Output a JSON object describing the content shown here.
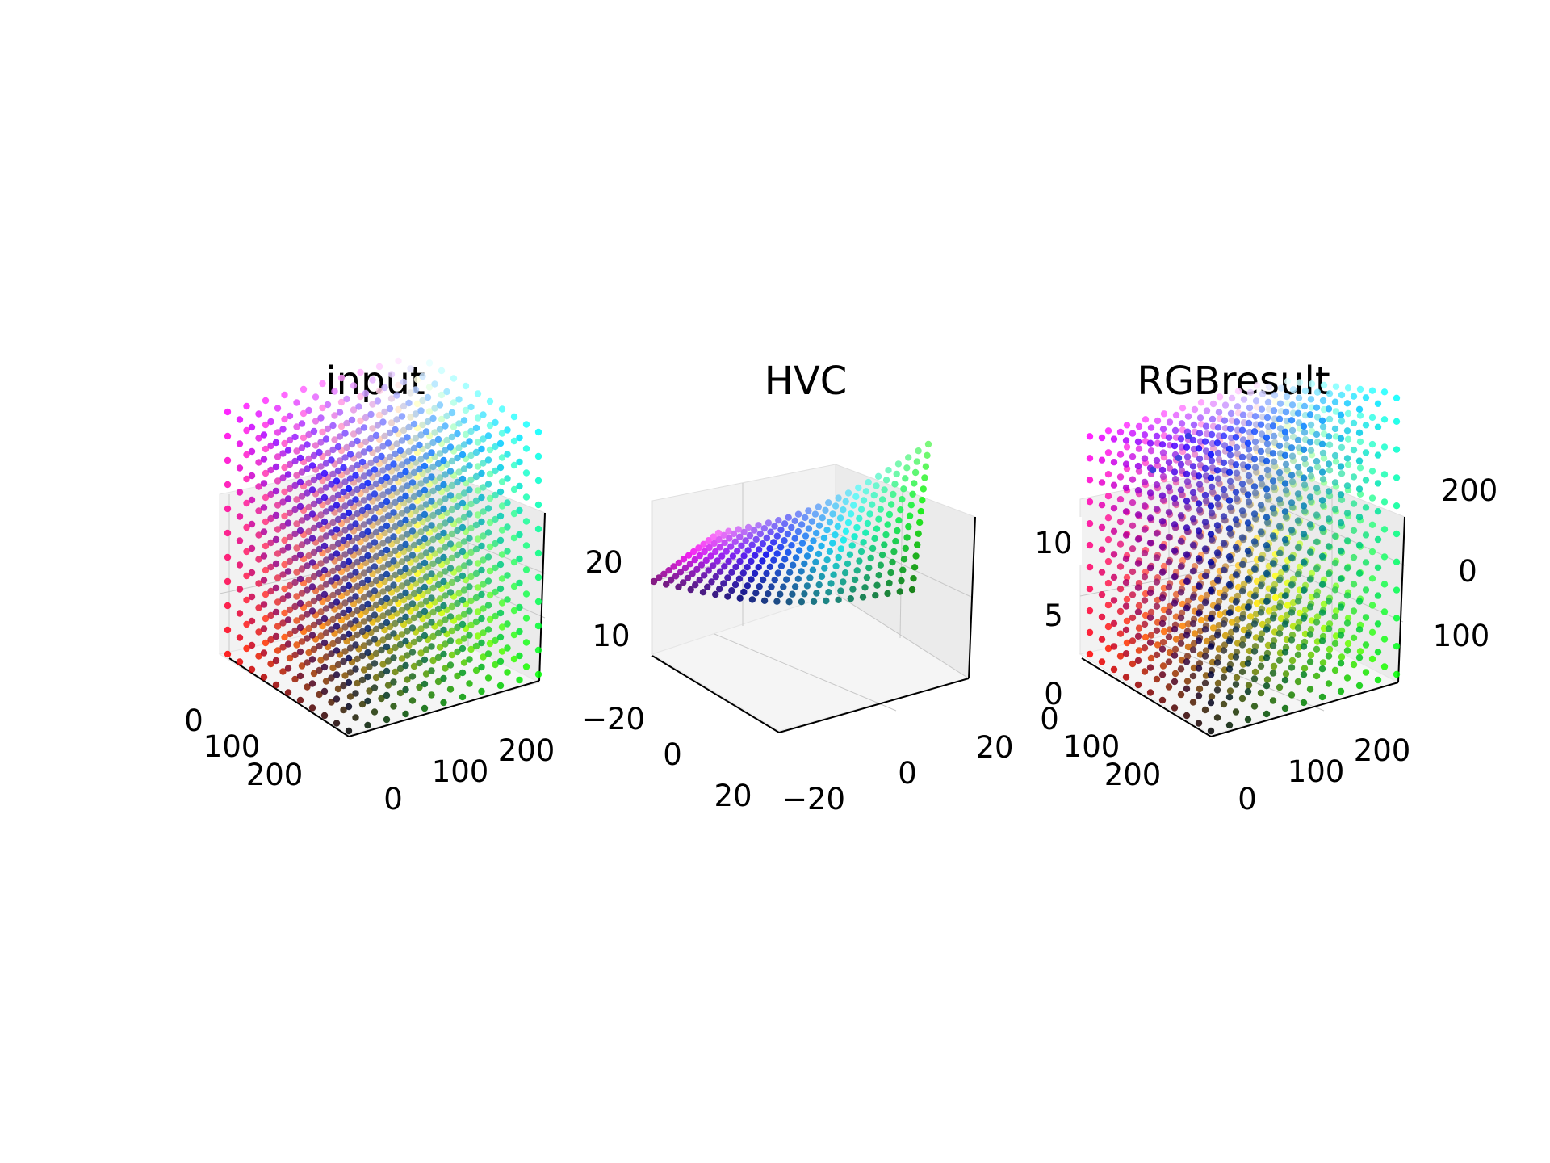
{
  "chart_data": [
    {
      "type": "scatter",
      "subtype": "3d-scatter",
      "title": "input",
      "grid": true,
      "point_coloring": "each point colored by its own RGB value",
      "axes": {
        "x": {
          "ticks": [
            "0",
            "100",
            "200"
          ],
          "range": [
            0,
            255
          ]
        },
        "y": {
          "ticks": [
            "0",
            "100",
            "200"
          ],
          "range": [
            0,
            255
          ]
        },
        "z": {
          "ticks": [],
          "range": [
            0,
            255
          ]
        }
      },
      "grid_steps": 11,
      "value_range": [
        0,
        255
      ]
    },
    {
      "type": "scatter",
      "subtype": "3d-scatter",
      "title": "HVC",
      "grid": true,
      "point_coloring": "each point colored by its source RGB value",
      "axes": {
        "x": {
          "ticks": [
            "−20",
            "0",
            "20"
          ],
          "range": [
            -30,
            30
          ]
        },
        "y": {
          "ticks": [
            "−20",
            "0",
            "20"
          ],
          "range": [
            -30,
            30
          ]
        },
        "z": {
          "ticks": [
            "10",
            "20"
          ],
          "range": [
            0,
            28
          ]
        }
      },
      "clipped_tick_text": [
        "10"
      ]
    },
    {
      "type": "scatter",
      "subtype": "3d-scatter",
      "title": "RGBresult",
      "grid": true,
      "point_coloring": "each point colored by its RGB value",
      "axes": {
        "x": {
          "ticks": [
            "0",
            "100",
            "200"
          ],
          "range": [
            0,
            255
          ]
        },
        "y": {
          "ticks": [
            "0",
            "100",
            "200"
          ],
          "range": [
            0,
            255
          ]
        },
        "z": {
          "ticks": [
            "0",
            "100",
            "200"
          ],
          "range": [
            0,
            255
          ]
        }
      },
      "left_axis_ticks": [
        "0",
        "5",
        "10"
      ],
      "clipped_tick_text": [
        "10"
      ]
    }
  ]
}
